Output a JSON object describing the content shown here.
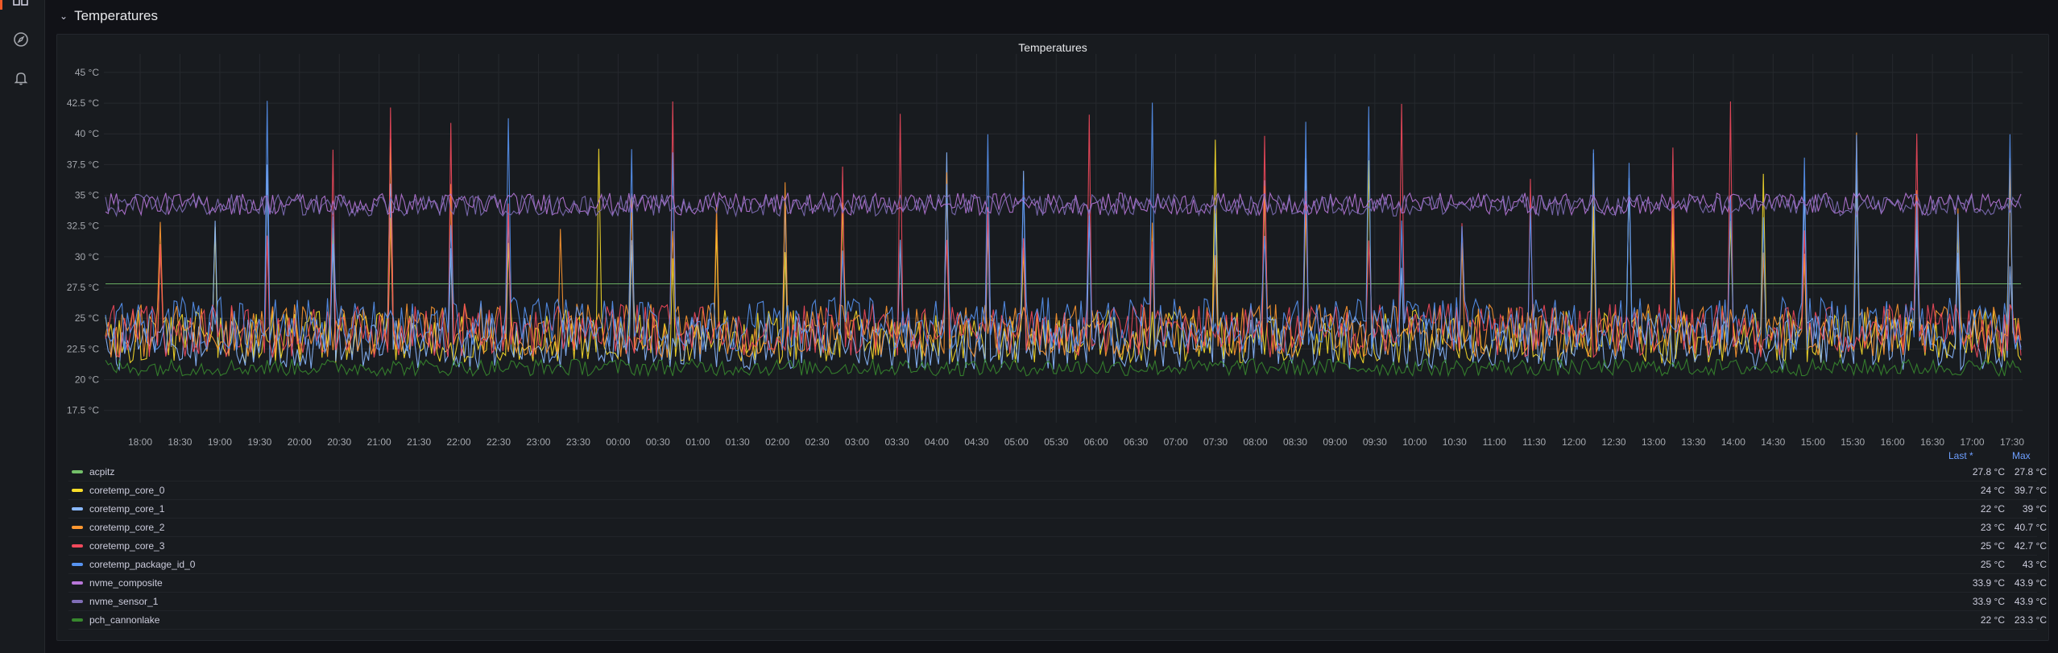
{
  "sidebar": {
    "items": [
      {
        "icon": "dashboards-icon"
      },
      {
        "icon": "explore-compass-icon"
      },
      {
        "icon": "alerting-bell-icon"
      }
    ]
  },
  "row": {
    "title": "Temperatures",
    "collapse_icon": "chevron-down-icon"
  },
  "panel": {
    "title": "Temperatures"
  },
  "chart_data": {
    "type": "line",
    "title": "Temperatures",
    "xlabel": "",
    "ylabel": "",
    "y_ticks": [
      "17.5 °C",
      "20 °C",
      "22.5 °C",
      "25 °C",
      "27.5 °C",
      "30 °C",
      "32.5 °C",
      "35 °C",
      "37.5 °C",
      "40 °C",
      "42.5 °C",
      "45 °C"
    ],
    "ylim": [
      16.5,
      46.5
    ],
    "x_ticks": [
      "18:00",
      "18:30",
      "19:00",
      "19:30",
      "20:00",
      "20:30",
      "21:00",
      "21:30",
      "22:00",
      "22:30",
      "23:00",
      "23:30",
      "00:00",
      "00:30",
      "01:00",
      "01:30",
      "02:00",
      "02:30",
      "03:00",
      "03:30",
      "04:00",
      "04:30",
      "05:00",
      "05:30",
      "06:00",
      "06:30",
      "07:00",
      "07:30",
      "08:00",
      "08:30",
      "09:00",
      "09:30",
      "10:00",
      "10:30",
      "11:00",
      "11:30",
      "12:00",
      "12:30",
      "13:00",
      "13:30",
      "14:00",
      "14:30",
      "15:00",
      "15:30",
      "16:00",
      "16:30",
      "17:00",
      "17:30"
    ],
    "grid": true,
    "legend_position": "bottom",
    "legend_columns": [
      "Last *",
      "Max"
    ],
    "series": [
      {
        "name": "acpitz",
        "color": "#73bf69",
        "baseline": 27.8,
        "last": "27.8 °C",
        "max": "27.8 °C"
      },
      {
        "name": "coretemp_core_0",
        "color": "#fade2a",
        "baseline": 23.5,
        "last": "24 °C",
        "max": "39.7 °C"
      },
      {
        "name": "coretemp_core_1",
        "color": "#8ab8ff",
        "baseline": 23.0,
        "last": "22 °C",
        "max": "39 °C"
      },
      {
        "name": "coretemp_core_2",
        "color": "#ff9830",
        "baseline": 24.0,
        "last": "23 °C",
        "max": "40.7 °C"
      },
      {
        "name": "coretemp_core_3",
        "color": "#f2495c",
        "baseline": 24.0,
        "last": "25 °C",
        "max": "42.7 °C"
      },
      {
        "name": "coretemp_package_id_0",
        "color": "#5794f2",
        "baseline": 24.5,
        "last": "25 °C",
        "max": "43 °C"
      },
      {
        "name": "nvme_composite",
        "color": "#b877d9",
        "baseline": 34.3,
        "last": "33.9 °C",
        "max": "43.9 °C"
      },
      {
        "name": "nvme_sensor_1",
        "color": "#806eb7",
        "baseline": 34.2,
        "last": "33.9 °C",
        "max": "43.9 °C"
      },
      {
        "name": "pch_cannonlake",
        "color": "#37872d",
        "baseline": 21.0,
        "last": "22 °C",
        "max": "23.3 °C"
      }
    ]
  }
}
